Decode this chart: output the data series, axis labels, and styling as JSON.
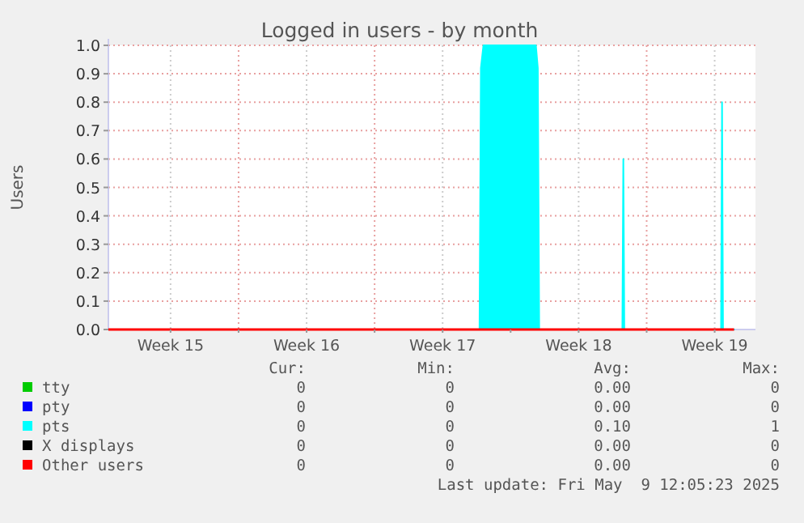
{
  "chart_data": {
    "type": "line",
    "title": "Logged in users - by month",
    "ylabel": "Users",
    "xlim": [
      "2025-04-07T07:12",
      "2025-05-10T14:24"
    ],
    "xticks": [
      {
        "value": "2025-04-10T12:00",
        "label": "Week 15"
      },
      {
        "value": "2025-04-14",
        "label": null
      },
      {
        "value": "2025-04-17T12:00",
        "label": "Week 16"
      },
      {
        "value": "2025-04-21",
        "label": null
      },
      {
        "value": "2025-04-24T12:00",
        "label": "Week 17"
      },
      {
        "value": "2025-04-28",
        "label": null
      },
      {
        "value": "2025-05-01T12:00",
        "label": "Week 18"
      },
      {
        "value": "2025-05-05",
        "label": null
      },
      {
        "value": "2025-05-08T12:00",
        "label": "Week 19"
      }
    ],
    "ylim": [
      0,
      1
    ],
    "yticks": [
      {
        "value": 0,
        "label": "0.0"
      },
      {
        "value": 0.1,
        "label": "0.1"
      },
      {
        "value": 0.2,
        "label": "0.2"
      },
      {
        "value": 0.3,
        "label": "0.3"
      },
      {
        "value": 0.4,
        "label": "0.4"
      },
      {
        "value": 0.5,
        "label": "0.5"
      },
      {
        "value": 0.6,
        "label": "0.6"
      },
      {
        "value": 0.7,
        "label": "0.7"
      },
      {
        "value": 0.8,
        "label": "0.8"
      },
      {
        "value": 0.9,
        "label": "0.9"
      },
      {
        "value": 1,
        "label": "1.0"
      }
    ],
    "grid": true,
    "legend": "bottom",
    "series": [
      {
        "name": "tty",
        "color": "#00cc00"
      },
      {
        "name": "pty",
        "color": "#0000ff"
      },
      {
        "name": "pts",
        "color": "#00ffff",
        "type": "area",
        "x": [
          "2025-04-07T07:12",
          "2025-04-26T09:36",
          "2025-04-26T11:17",
          "2025-04-26T14:24",
          "2025-04-29T07:12",
          "2025-04-29T09:36",
          "2025-04-29T11:17",
          "2025-05-03T18:00",
          "2025-05-03T19:12",
          "2025-05-03T20:24",
          "2025-05-08T19:55",
          "2025-05-08T21:07",
          "2025-05-08T22:19",
          "2025-05-09T12:00"
        ],
        "values": [
          0,
          0,
          0.92,
          1,
          1,
          0.92,
          0,
          0,
          0.6,
          0,
          0,
          0.8,
          0,
          0
        ]
      },
      {
        "name": "X displays",
        "color": "#000000"
      },
      {
        "name": "Other users",
        "color": "#ff0000",
        "x": [
          "2025-04-07T07:12",
          "2025-05-09T12:00"
        ],
        "values": [
          0,
          0
        ]
      }
    ],
    "annotations": [
      "Cur:",
      "Min:",
      "Avg:",
      "Max:",
      "0",
      "0",
      "0.00",
      "0",
      "0",
      "0",
      "0.00",
      "0",
      "0",
      "0",
      "0.10",
      "1",
      "0",
      "0",
      "0.00",
      "0",
      "0",
      "0",
      "0.00",
      "0",
      "Last update: Fri May  9 12:05:23 2025"
    ]
  }
}
